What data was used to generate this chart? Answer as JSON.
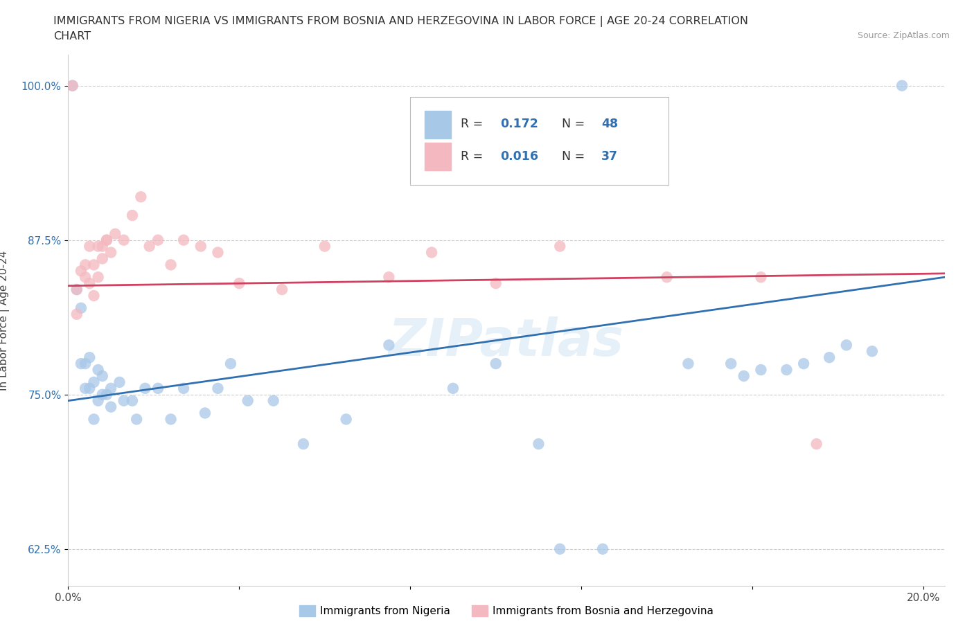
{
  "title_line1": "IMMIGRANTS FROM NIGERIA VS IMMIGRANTS FROM BOSNIA AND HERZEGOVINA IN LABOR FORCE | AGE 20-24 CORRELATION",
  "title_line2": "CHART",
  "source_text": "Source: ZipAtlas.com",
  "ylabel": "In Labor Force | Age 20-24",
  "xlim": [
    0.0,
    0.205
  ],
  "ylim": [
    0.595,
    1.025
  ],
  "yticks": [
    0.625,
    0.75,
    0.875,
    1.0
  ],
  "ytick_labels": [
    "62.5%",
    "75.0%",
    "87.5%",
    "100.0%"
  ],
  "xticks": [
    0.0,
    0.04,
    0.08,
    0.12,
    0.16,
    0.2
  ],
  "xtick_labels_show": [
    "0.0%",
    "",
    "",
    "",
    "",
    "20.0%"
  ],
  "R_nigeria": "0.172",
  "N_nigeria": "48",
  "R_bosnia": "0.016",
  "N_bosnia": "37",
  "color_nigeria": "#a8c8e8",
  "color_bosnia": "#f4b8c0",
  "color_nigeria_line": "#3070b0",
  "color_bosnia_line": "#d04060",
  "color_text_blue": "#3070b0",
  "watermark": "ZIPatlas",
  "nigeria_x": [
    0.001,
    0.002,
    0.003,
    0.003,
    0.004,
    0.004,
    0.005,
    0.005,
    0.006,
    0.006,
    0.007,
    0.007,
    0.008,
    0.008,
    0.009,
    0.01,
    0.01,
    0.012,
    0.013,
    0.015,
    0.016,
    0.018,
    0.021,
    0.024,
    0.027,
    0.032,
    0.035,
    0.038,
    0.042,
    0.048,
    0.055,
    0.065,
    0.075,
    0.09,
    0.1,
    0.11,
    0.115,
    0.125,
    0.145,
    0.155,
    0.158,
    0.162,
    0.168,
    0.172,
    0.178,
    0.182,
    0.188,
    0.195
  ],
  "nigeria_y": [
    1.0,
    0.835,
    0.775,
    0.82,
    0.755,
    0.775,
    0.755,
    0.78,
    0.73,
    0.76,
    0.745,
    0.77,
    0.75,
    0.765,
    0.75,
    0.755,
    0.74,
    0.76,
    0.745,
    0.745,
    0.73,
    0.755,
    0.755,
    0.73,
    0.755,
    0.735,
    0.755,
    0.775,
    0.745,
    0.745,
    0.71,
    0.73,
    0.79,
    0.755,
    0.775,
    0.71,
    0.625,
    0.625,
    0.775,
    0.775,
    0.765,
    0.77,
    0.77,
    0.775,
    0.78,
    0.79,
    0.785,
    1.0
  ],
  "bosnia_x": [
    0.001,
    0.002,
    0.002,
    0.003,
    0.004,
    0.004,
    0.005,
    0.005,
    0.006,
    0.006,
    0.007,
    0.007,
    0.008,
    0.008,
    0.009,
    0.009,
    0.01,
    0.011,
    0.013,
    0.015,
    0.017,
    0.019,
    0.021,
    0.024,
    0.027,
    0.031,
    0.035,
    0.04,
    0.05,
    0.06,
    0.075,
    0.085,
    0.1,
    0.115,
    0.14,
    0.162,
    0.175
  ],
  "bosnia_y": [
    1.0,
    0.815,
    0.835,
    0.85,
    0.845,
    0.855,
    0.84,
    0.87,
    0.83,
    0.855,
    0.845,
    0.87,
    0.87,
    0.86,
    0.875,
    0.875,
    0.865,
    0.88,
    0.875,
    0.895,
    0.91,
    0.87,
    0.875,
    0.855,
    0.875,
    0.87,
    0.865,
    0.84,
    0.835,
    0.87,
    0.845,
    0.865,
    0.84,
    0.87,
    0.845,
    0.845,
    0.71
  ]
}
